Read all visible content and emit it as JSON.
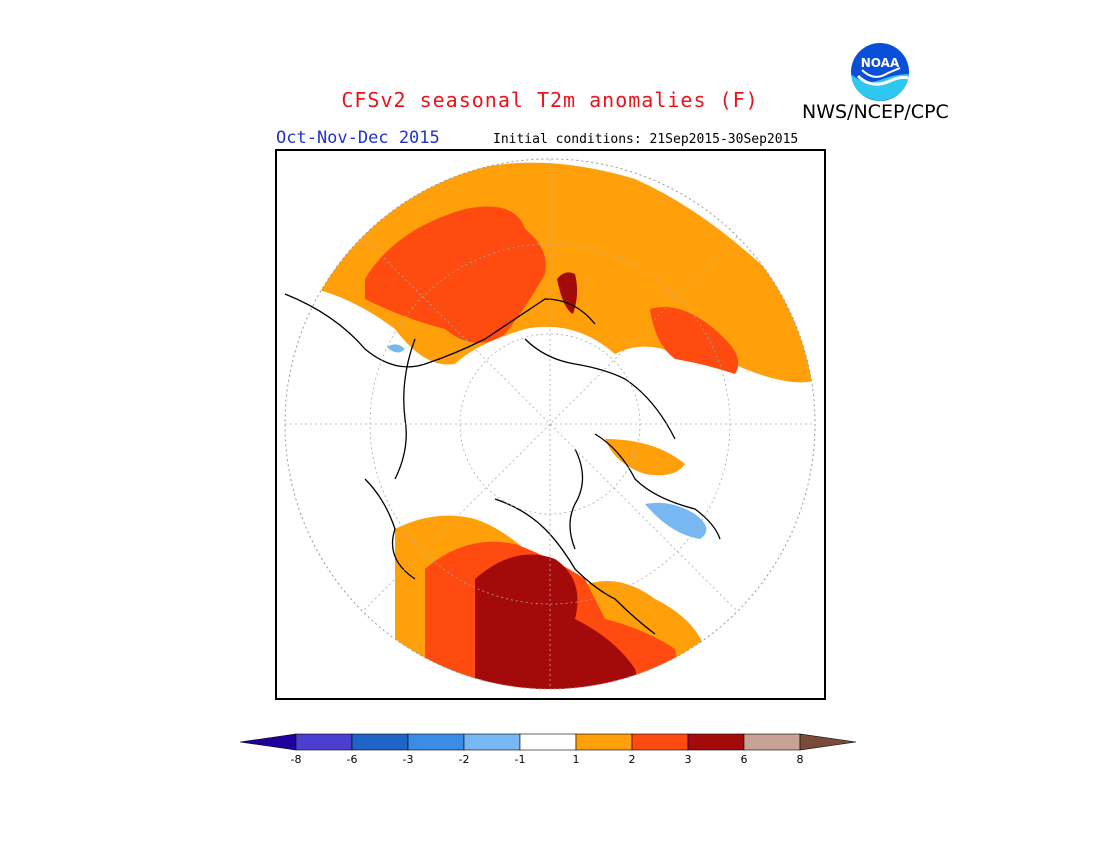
{
  "header": {
    "title": "CFSv2 seasonal T2m anomalies (F)",
    "organization": "NWS/NCEP/CPC",
    "period": "Oct-Nov-Dec 2015",
    "initial_conditions": "Initial conditions: 21Sep2015-30Sep2015",
    "logo_text": "NOAA"
  },
  "map": {
    "projection": "north polar stereographic",
    "variable": "2m temperature anomaly"
  },
  "colorbar": {
    "ticks": [
      "-8",
      "-6",
      "-3",
      "-2",
      "-1",
      "1",
      "2",
      "3",
      "6",
      "8"
    ],
    "colors": {
      "below_min": "#20009c",
      "bins": [
        "#4b3fcf",
        "#1f64c8",
        "#3a8ce6",
        "#78b8f2",
        "#ffffff",
        "#ffa00a",
        "#ff4a10",
        "#a50a0a",
        "#c8a294"
      ],
      "above_max": "#7a4a3a"
    }
  }
}
